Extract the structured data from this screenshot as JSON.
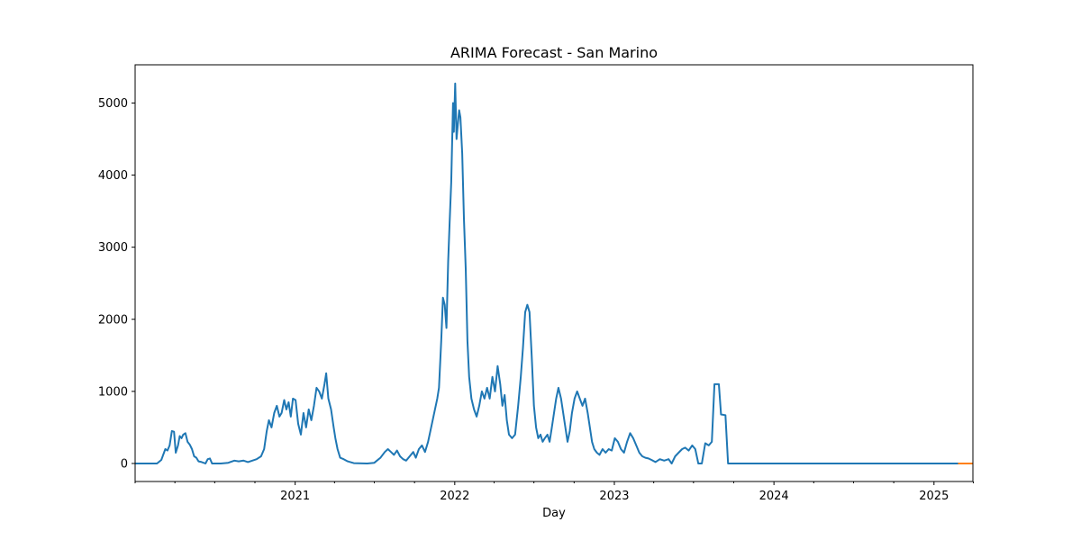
{
  "chart_data": {
    "type": "line",
    "title": "ARIMA Forecast - San Marino",
    "xlabel": "Day",
    "ylabel": "",
    "xlim": [
      "2020-01-01",
      "2025-03-31"
    ],
    "ylim": [
      -250,
      5530
    ],
    "x_ticks_major": [
      {
        "date": "2021-01-01",
        "label": "2021"
      },
      {
        "date": "2022-01-01",
        "label": "2022"
      },
      {
        "date": "2023-01-01",
        "label": "2023"
      },
      {
        "date": "2024-01-01",
        "label": "2024"
      },
      {
        "date": "2025-01-01",
        "label": "2025"
      }
    ],
    "x_ticks_minor": [
      "2020-01-01",
      "2020-04-01",
      "2020-07-01",
      "2020-10-01",
      "2021-04-01",
      "2021-07-01",
      "2021-10-01",
      "2022-04-01",
      "2022-07-01",
      "2022-10-01",
      "2023-04-01",
      "2023-07-01",
      "2023-10-01",
      "2024-04-01",
      "2024-07-01",
      "2024-10-01",
      "2025-04-01"
    ],
    "y_ticks": [
      0,
      1000,
      2000,
      3000,
      4000,
      5000
    ],
    "legend": "none",
    "grid": false,
    "series": [
      {
        "role": "observed",
        "color": "#1f77b4",
        "points": [
          [
            "2020-01-01",
            0
          ],
          [
            "2020-02-20",
            0
          ],
          [
            "2020-03-01",
            50
          ],
          [
            "2020-03-10",
            200
          ],
          [
            "2020-03-15",
            180
          ],
          [
            "2020-03-20",
            250
          ],
          [
            "2020-03-25",
            450
          ],
          [
            "2020-03-30",
            440
          ],
          [
            "2020-04-03",
            150
          ],
          [
            "2020-04-08",
            250
          ],
          [
            "2020-04-12",
            380
          ],
          [
            "2020-04-16",
            350
          ],
          [
            "2020-04-20",
            400
          ],
          [
            "2020-04-25",
            420
          ],
          [
            "2020-04-30",
            300
          ],
          [
            "2020-05-05",
            260
          ],
          [
            "2020-05-10",
            200
          ],
          [
            "2020-05-15",
            100
          ],
          [
            "2020-05-20",
            80
          ],
          [
            "2020-05-25",
            30
          ],
          [
            "2020-06-01",
            20
          ],
          [
            "2020-06-10",
            0
          ],
          [
            "2020-06-15",
            60
          ],
          [
            "2020-06-20",
            70
          ],
          [
            "2020-06-25",
            0
          ],
          [
            "2020-07-15",
            0
          ],
          [
            "2020-08-01",
            10
          ],
          [
            "2020-08-15",
            40
          ],
          [
            "2020-08-25",
            30
          ],
          [
            "2020-09-05",
            40
          ],
          [
            "2020-09-15",
            20
          ],
          [
            "2020-09-25",
            40
          ],
          [
            "2020-10-05",
            60
          ],
          [
            "2020-10-15",
            100
          ],
          [
            "2020-10-22",
            200
          ],
          [
            "2020-10-28",
            450
          ],
          [
            "2020-11-02",
            600
          ],
          [
            "2020-11-08",
            500
          ],
          [
            "2020-11-14",
            700
          ],
          [
            "2020-11-20",
            800
          ],
          [
            "2020-11-26",
            650
          ],
          [
            "2020-12-01",
            700
          ],
          [
            "2020-12-07",
            880
          ],
          [
            "2020-12-12",
            750
          ],
          [
            "2020-12-17",
            850
          ],
          [
            "2020-12-22",
            650
          ],
          [
            "2020-12-27",
            900
          ],
          [
            "2021-01-02",
            880
          ],
          [
            "2021-01-08",
            550
          ],
          [
            "2021-01-14",
            400
          ],
          [
            "2021-01-20",
            700
          ],
          [
            "2021-01-26",
            500
          ],
          [
            "2021-02-01",
            750
          ],
          [
            "2021-02-07",
            600
          ],
          [
            "2021-02-13",
            800
          ],
          [
            "2021-02-19",
            1050
          ],
          [
            "2021-02-25",
            1000
          ],
          [
            "2021-03-03",
            900
          ],
          [
            "2021-03-09",
            1100
          ],
          [
            "2021-03-13",
            1250
          ],
          [
            "2021-03-18",
            900
          ],
          [
            "2021-03-24",
            750
          ],
          [
            "2021-03-30",
            500
          ],
          [
            "2021-04-03",
            350
          ],
          [
            "2021-04-08",
            200
          ],
          [
            "2021-04-14",
            80
          ],
          [
            "2021-04-22",
            60
          ],
          [
            "2021-05-01",
            30
          ],
          [
            "2021-05-15",
            5
          ],
          [
            "2021-06-15",
            0
          ],
          [
            "2021-07-01",
            10
          ],
          [
            "2021-07-15",
            80
          ],
          [
            "2021-07-25",
            160
          ],
          [
            "2021-08-01",
            200
          ],
          [
            "2021-08-08",
            160
          ],
          [
            "2021-08-15",
            120
          ],
          [
            "2021-08-22",
            180
          ],
          [
            "2021-08-29",
            100
          ],
          [
            "2021-09-05",
            60
          ],
          [
            "2021-09-12",
            40
          ],
          [
            "2021-09-20",
            100
          ],
          [
            "2021-09-28",
            160
          ],
          [
            "2021-10-04",
            80
          ],
          [
            "2021-10-11",
            200
          ],
          [
            "2021-10-18",
            250
          ],
          [
            "2021-10-25",
            160
          ],
          [
            "2021-11-01",
            300
          ],
          [
            "2021-11-08",
            500
          ],
          [
            "2021-11-15",
            700
          ],
          [
            "2021-11-22",
            900
          ],
          [
            "2021-11-26",
            1050
          ],
          [
            "2021-12-01",
            1700
          ],
          [
            "2021-12-05",
            2300
          ],
          [
            "2021-12-09",
            2200
          ],
          [
            "2021-12-13",
            1880
          ],
          [
            "2021-12-17",
            2800
          ],
          [
            "2021-12-20",
            3300
          ],
          [
            "2021-12-24",
            3900
          ],
          [
            "2021-12-28",
            5000
          ],
          [
            "2021-12-30",
            4600
          ],
          [
            "2022-01-02",
            5270
          ],
          [
            "2022-01-05",
            4500
          ],
          [
            "2022-01-08",
            4700
          ],
          [
            "2022-01-11",
            4900
          ],
          [
            "2022-01-14",
            4800
          ],
          [
            "2022-01-18",
            4300
          ],
          [
            "2022-01-22",
            3400
          ],
          [
            "2022-01-26",
            2700
          ],
          [
            "2022-01-30",
            1700
          ],
          [
            "2022-02-03",
            1200
          ],
          [
            "2022-02-08",
            900
          ],
          [
            "2022-02-14",
            750
          ],
          [
            "2022-02-20",
            650
          ],
          [
            "2022-02-26",
            800
          ],
          [
            "2022-03-04",
            1000
          ],
          [
            "2022-03-10",
            900
          ],
          [
            "2022-03-16",
            1050
          ],
          [
            "2022-03-22",
            900
          ],
          [
            "2022-03-28",
            1200
          ],
          [
            "2022-04-03",
            1000
          ],
          [
            "2022-04-09",
            1350
          ],
          [
            "2022-04-15",
            1100
          ],
          [
            "2022-04-20",
            800
          ],
          [
            "2022-04-25",
            950
          ],
          [
            "2022-04-30",
            600
          ],
          [
            "2022-05-05",
            400
          ],
          [
            "2022-05-12",
            350
          ],
          [
            "2022-05-19",
            400
          ],
          [
            "2022-05-26",
            800
          ],
          [
            "2022-06-01",
            1200
          ],
          [
            "2022-06-06",
            1600
          ],
          [
            "2022-06-11",
            2100
          ],
          [
            "2022-06-16",
            2200
          ],
          [
            "2022-06-21",
            2100
          ],
          [
            "2022-06-26",
            1500
          ],
          [
            "2022-07-01",
            800
          ],
          [
            "2022-07-06",
            500
          ],
          [
            "2022-07-11",
            350
          ],
          [
            "2022-07-16",
            400
          ],
          [
            "2022-07-21",
            300
          ],
          [
            "2022-07-26",
            350
          ],
          [
            "2022-08-01",
            400
          ],
          [
            "2022-08-06",
            300
          ],
          [
            "2022-08-11",
            500
          ],
          [
            "2022-08-16",
            700
          ],
          [
            "2022-08-21",
            900
          ],
          [
            "2022-08-26",
            1050
          ],
          [
            "2022-09-01",
            900
          ],
          [
            "2022-09-06",
            700
          ],
          [
            "2022-09-11",
            500
          ],
          [
            "2022-09-16",
            300
          ],
          [
            "2022-09-21",
            450
          ],
          [
            "2022-09-26",
            700
          ],
          [
            "2022-10-02",
            900
          ],
          [
            "2022-10-08",
            1000
          ],
          [
            "2022-10-14",
            900
          ],
          [
            "2022-10-20",
            800
          ],
          [
            "2022-10-26",
            900
          ],
          [
            "2022-11-01",
            700
          ],
          [
            "2022-11-06",
            500
          ],
          [
            "2022-11-11",
            300
          ],
          [
            "2022-11-16",
            200
          ],
          [
            "2022-11-22",
            150
          ],
          [
            "2022-11-28",
            120
          ],
          [
            "2022-12-05",
            200
          ],
          [
            "2022-12-12",
            150
          ],
          [
            "2022-12-19",
            200
          ],
          [
            "2022-12-26",
            180
          ],
          [
            "2023-01-02",
            350
          ],
          [
            "2023-01-09",
            300
          ],
          [
            "2023-01-16",
            200
          ],
          [
            "2023-01-23",
            150
          ],
          [
            "2023-01-30",
            300
          ],
          [
            "2023-02-06",
            420
          ],
          [
            "2023-02-13",
            350
          ],
          [
            "2023-02-20",
            250
          ],
          [
            "2023-02-27",
            150
          ],
          [
            "2023-03-06",
            100
          ],
          [
            "2023-03-13",
            80
          ],
          [
            "2023-03-20",
            70
          ],
          [
            "2023-03-27",
            50
          ],
          [
            "2023-04-05",
            20
          ],
          [
            "2023-04-15",
            60
          ],
          [
            "2023-04-25",
            40
          ],
          [
            "2023-05-05",
            60
          ],
          [
            "2023-05-12",
            0
          ],
          [
            "2023-05-20",
            100
          ],
          [
            "2023-05-28",
            150
          ],
          [
            "2023-06-05",
            200
          ],
          [
            "2023-06-12",
            220
          ],
          [
            "2023-06-20",
            180
          ],
          [
            "2023-06-28",
            250
          ],
          [
            "2023-07-05",
            200
          ],
          [
            "2023-07-12",
            0
          ],
          [
            "2023-07-20",
            0
          ],
          [
            "2023-07-28",
            280
          ],
          [
            "2023-08-05",
            250
          ],
          [
            "2023-08-12",
            300
          ],
          [
            "2023-08-18",
            1100
          ],
          [
            "2023-08-28",
            1100
          ],
          [
            "2023-09-02",
            680
          ],
          [
            "2023-09-12",
            670
          ],
          [
            "2023-09-18",
            0
          ],
          [
            "2025-02-25",
            0
          ]
        ]
      },
      {
        "role": "forecast",
        "color": "#ff7f0e",
        "points": [
          [
            "2025-02-25",
            0
          ],
          [
            "2025-03-31",
            0
          ]
        ]
      }
    ]
  }
}
